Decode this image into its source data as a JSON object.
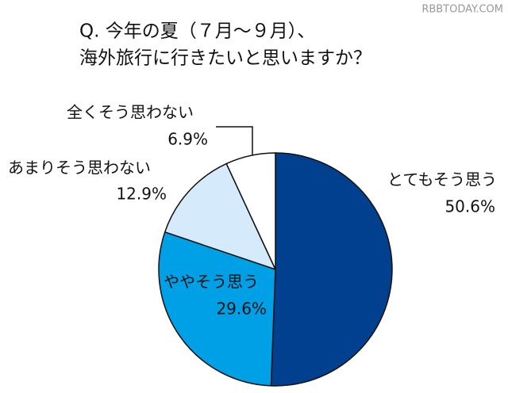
{
  "chart_data": {
    "type": "pie",
    "title": "Q. 今年の夏（７月～９月）、",
    "subtitle": "海外旅行に行きたいと思いますか？",
    "watermark": "RBBTODAY.COM",
    "categories": [
      "とてもそう思う",
      "ややそう思う",
      "あまりそう思わない",
      "全くそう思わない"
    ],
    "values": [
      50.6,
      29.6,
      12.9,
      6.9
    ],
    "value_labels": [
      "50.6%",
      "29.6%",
      "12.9%",
      "6.9%"
    ],
    "colors": [
      "#00408f",
      "#00a0e6",
      "#d5eafa",
      "#ffffff"
    ]
  }
}
